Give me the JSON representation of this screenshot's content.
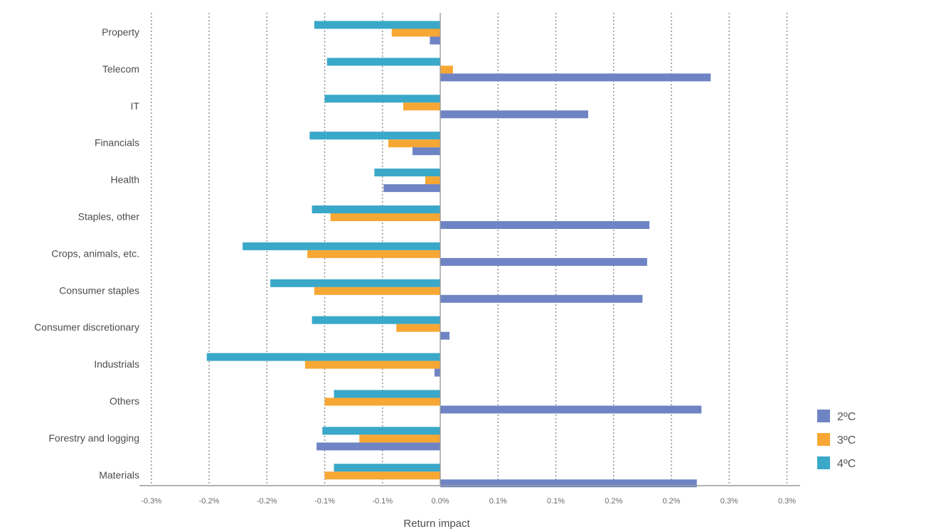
{
  "chart_data": {
    "type": "bar",
    "orientation": "horizontal",
    "xlabel": "Return impact",
    "ylabel": "",
    "xlim": [
      -0.25,
      0.3
    ],
    "tick_values": [
      -0.25,
      -0.2,
      -0.15,
      -0.1,
      -0.05,
      0.0,
      0.05,
      0.1,
      0.15,
      0.2,
      0.25,
      0.3
    ],
    "tick_labels": [
      "-0.3%",
      "-0.2%",
      "-0.2%",
      "-0.1%",
      "-0.1%",
      "0.0%",
      "0.1%",
      "0.1%",
      "0.2%",
      "0.2%",
      "0.3%",
      "0.3%"
    ],
    "grid": "vertical dotted",
    "legend_position": "bottom-right",
    "categories": [
      "Property",
      "Telecom",
      "IT",
      "Financials",
      "Health",
      "Staples, other",
      "Crops, animals, etc.",
      "Consumer staples",
      "Consumer discretionary",
      "Industrials",
      "Others",
      "Forestry and logging",
      "Materials"
    ],
    "series": [
      {
        "name": "2ºC",
        "color": "#6f84c4",
        "values": [
          -0.009,
          0.234,
          0.128,
          -0.024,
          -0.049,
          0.181,
          0.179,
          0.175,
          0.008,
          -0.005,
          0.226,
          -0.107,
          0.222
        ]
      },
      {
        "name": "3ºC",
        "color": "#f7a734",
        "values": [
          -0.042,
          0.011,
          -0.032,
          -0.045,
          -0.013,
          -0.095,
          -0.115,
          -0.109,
          -0.038,
          -0.117,
          -0.1,
          -0.07,
          -0.1
        ]
      },
      {
        "name": "4ºC",
        "color": "#3aa8c8",
        "values": [
          -0.109,
          -0.098,
          -0.1,
          -0.113,
          -0.057,
          -0.111,
          -0.171,
          -0.147,
          -0.111,
          -0.202,
          -0.092,
          -0.102,
          -0.092
        ]
      }
    ]
  }
}
